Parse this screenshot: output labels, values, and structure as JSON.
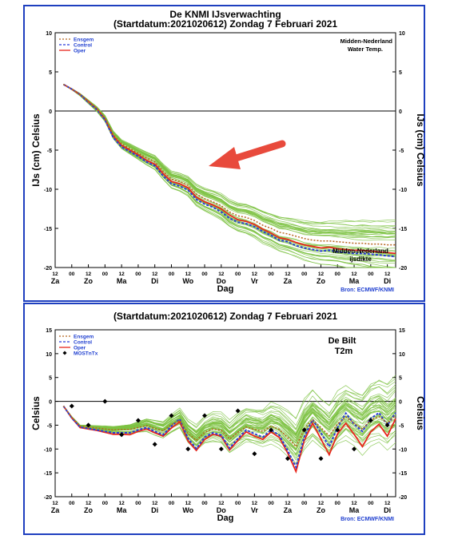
{
  "colors": {
    "frame": "#1e3fbf",
    "ensemble": "#7dc242",
    "oper": "#e8261c",
    "control": "#2a3bd9",
    "ensgem": "#b5651d",
    "source": "#1f3fd0",
    "arrow": "#e84a3c"
  },
  "day_labels": [
    "Za",
    "Zo",
    "Ma",
    "Di",
    "Wo",
    "Do",
    "Vr",
    "Za",
    "Zo",
    "Ma",
    "Di"
  ],
  "hour_labels": [
    "12",
    "00",
    "12",
    "00",
    "12",
    "00",
    "12",
    "00",
    "12",
    "00",
    "12",
    "00",
    "12",
    "00",
    "12",
    "00",
    "12",
    "00",
    "12",
    "00",
    "12"
  ],
  "chart_data": [
    {
      "type": "line",
      "title": "De KNMI IJsverwachting",
      "subtitle": "(Startdatum:2021020612)  Zondag  7 Februari 2021",
      "ylabel": "IJs (cm) Celsius",
      "xlabel": "Dag",
      "ylim": [
        -20,
        10
      ],
      "y_ticks": [
        "10",
        "5",
        "0",
        "-5",
        "-10",
        "-15",
        "-20"
      ],
      "source": "Bron: ECMWF/KNMI",
      "annotation_top": [
        "Midden-Nederland",
        "Water Temp."
      ],
      "annotation_bottom": [
        "Midden-Nederland",
        "ijsdikte"
      ],
      "legend": [
        "Ensgem",
        "Control",
        "Oper"
      ],
      "x": [
        24,
        30,
        36,
        42,
        48,
        54,
        60,
        66,
        72,
        78,
        84,
        90,
        96,
        102,
        108,
        114,
        120,
        126,
        132,
        138,
        144,
        150,
        156,
        162,
        168,
        174,
        180,
        186,
        192,
        198,
        204,
        210,
        216,
        222,
        228,
        234,
        240,
        246,
        252,
        258,
        264
      ],
      "series": [
        {
          "name": "Oper",
          "values": [
            3.4,
            2.8,
            2.1,
            1.2,
            0.3,
            -1.0,
            -3.2,
            -4.4,
            -5.0,
            -5.6,
            -6.3,
            -6.8,
            -8.0,
            -9.0,
            -9.3,
            -9.8,
            -11.0,
            -11.6,
            -12.0,
            -12.5,
            -13.3,
            -13.9,
            -14.1,
            -14.5,
            -15.1,
            -15.6,
            -16.2,
            -16.4,
            -16.8,
            -17.1,
            -17.3,
            -17.5,
            -17.4,
            -17.6,
            -17.7,
            -17.8,
            -17.8,
            -17.9,
            -18.0,
            -18.1,
            -18.2
          ]
        },
        {
          "name": "Control",
          "values": [
            3.4,
            2.8,
            2.1,
            1.1,
            0.2,
            -1.1,
            -3.4,
            -4.6,
            -5.2,
            -5.8,
            -6.5,
            -7.0,
            -8.3,
            -9.3,
            -9.6,
            -10.1,
            -11.3,
            -11.9,
            -12.3,
            -12.9,
            -13.7,
            -14.2,
            -14.4,
            -14.8,
            -15.4,
            -15.9,
            -16.5,
            -16.7,
            -17.2,
            -17.5,
            -17.7,
            -17.9,
            -17.8,
            -18.0,
            -18.1,
            -18.2,
            -18.2,
            -18.3,
            -18.4,
            -18.5,
            -18.6
          ]
        },
        {
          "name": "Ensgem",
          "values": [
            3.4,
            2.8,
            2.1,
            1.2,
            0.3,
            -0.9,
            -3.0,
            -4.2,
            -4.8,
            -5.4,
            -6.0,
            -6.5,
            -7.7,
            -8.7,
            -9.0,
            -9.5,
            -10.6,
            -11.2,
            -11.6,
            -12.1,
            -12.9,
            -13.4,
            -13.6,
            -14.0,
            -14.6,
            -15.0,
            -15.5,
            -15.7,
            -16.0,
            -16.3,
            -16.5,
            -16.6,
            -16.6,
            -16.7,
            -16.8,
            -16.9,
            -16.9,
            -17.0,
            -17.0,
            -17.1,
            -17.1
          ]
        }
      ]
    },
    {
      "type": "line",
      "title": "(Startdatum:2021020612)  Zondag  7 Februari 2021",
      "ylabel": "Celsius",
      "xlabel": "Dag",
      "ylim": [
        -20,
        15
      ],
      "y_ticks": [
        "15",
        "10",
        "5",
        "0",
        "-5",
        "-10",
        "-15",
        "-20"
      ],
      "source": "Bron: ECMWF/KNMI",
      "annotation": [
        "De Bilt",
        "T2m"
      ],
      "legend": [
        "Ensgem",
        "Control",
        "Oper",
        "MOSTnTx"
      ],
      "x": [
        24,
        30,
        36,
        42,
        48,
        54,
        60,
        66,
        72,
        78,
        84,
        90,
        96,
        102,
        108,
        114,
        120,
        126,
        132,
        138,
        144,
        150,
        156,
        162,
        168,
        174,
        180,
        186,
        192,
        198,
        204,
        210,
        216,
        222,
        228,
        234,
        240,
        246,
        252,
        258,
        264
      ],
      "series": [
        {
          "name": "Oper",
          "values": [
            -1.0,
            -3.5,
            -5.5,
            -5.8,
            -6.1,
            -6.5,
            -6.9,
            -6.9,
            -7.0,
            -6.3,
            -5.8,
            -6.6,
            -7.3,
            -5.6,
            -4.3,
            -8.3,
            -10.3,
            -8.0,
            -6.9,
            -7.3,
            -10.2,
            -8.2,
            -6.4,
            -7.3,
            -8.0,
            -6.4,
            -7.6,
            -10.8,
            -14.7,
            -8.2,
            -4.6,
            -7.9,
            -11.2,
            -6.8,
            -4.6,
            -6.9,
            -9.5,
            -6.4,
            -4.8,
            -7.3,
            -3.6
          ]
        },
        {
          "name": "Control",
          "values": [
            -1.0,
            -3.5,
            -5.4,
            -5.7,
            -6.0,
            -6.3,
            -6.6,
            -6.6,
            -6.6,
            -6.0,
            -5.5,
            -6.3,
            -7.0,
            -5.2,
            -3.7,
            -7.8,
            -9.9,
            -7.5,
            -6.6,
            -7.1,
            -9.8,
            -7.8,
            -6.0,
            -6.8,
            -7.5,
            -6.0,
            -7.1,
            -10.3,
            -13.8,
            -7.4,
            -3.8,
            -6.6,
            -9.5,
            -5.5,
            -2.5,
            -4.8,
            -6.3,
            -3.6,
            -2.4,
            -5.0,
            -2.4
          ]
        },
        {
          "name": "Ensgem",
          "values": [
            -1.0,
            -3.3,
            -5.2,
            -5.4,
            -5.6,
            -5.8,
            -6.0,
            -5.9,
            -5.9,
            -5.5,
            -5.1,
            -5.7,
            -6.2,
            -4.9,
            -4.0,
            -6.7,
            -8.2,
            -6.5,
            -5.8,
            -6.1,
            -7.9,
            -6.5,
            -5.4,
            -5.9,
            -6.3,
            -5.2,
            -5.9,
            -7.6,
            -9.5,
            -5.8,
            -3.8,
            -5.5,
            -7.2,
            -4.7,
            -3.3,
            -4.6,
            -5.8,
            -3.9,
            -3.2,
            -4.6,
            -3.0
          ]
        }
      ],
      "mostntx": {
        "x": [
          30,
          42,
          54,
          66,
          78,
          90,
          102,
          114,
          126,
          138,
          150,
          162,
          174,
          186,
          198,
          210,
          222,
          234,
          246,
          258
        ],
        "values": [
          -1.0,
          -5.0,
          0.0,
          -7.0,
          -4.0,
          -9.0,
          -3.0,
          -10.0,
          -3.0,
          -10.0,
          -2.0,
          -11.0,
          -6.0,
          -12.0,
          -6.0,
          -12.0,
          -6.0,
          -10.0,
          -4.0,
          -5.0
        ]
      }
    }
  ]
}
